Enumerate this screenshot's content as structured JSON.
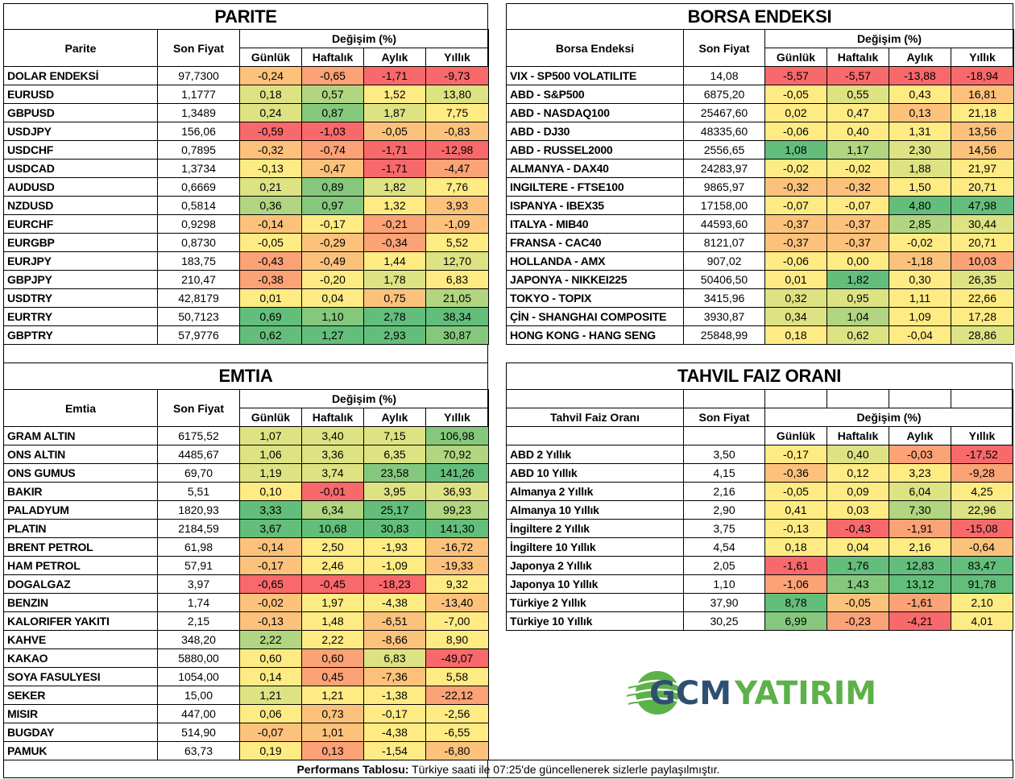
{
  "colors": {
    "red": "#f8696b",
    "orange": "#fba276",
    "light_orange": "#fcc27c",
    "yellow": "#ffeb84",
    "yellow_green": "#dde283",
    "light_green": "#b1d580",
    "green": "#85c87d",
    "dark_green": "#63be7b",
    "logo_blue": "#2d5070",
    "logo_green": "#5db14a"
  },
  "headers": {
    "son_fiyat": "Son Fiyat",
    "degisim": "Değişim (%)",
    "gunluk": "Günlük",
    "haftalik": "Haftalık",
    "aylik": "Aylık",
    "yillik": "Yıllık"
  },
  "parite": {
    "title": "PARITE",
    "name_header": "Parite",
    "rows": [
      {
        "name": "DOLAR ENDEKSİ",
        "price": "97,7300",
        "g": "-0,24",
        "h": "-0,65",
        "a": "-1,71",
        "y": "-9,73",
        "cg": "light_orange",
        "ch": "orange",
        "ca": "red",
        "cy": "red"
      },
      {
        "name": "EURUSD",
        "price": "1,1777",
        "g": "0,18",
        "h": "0,57",
        "a": "1,52",
        "y": "13,80",
        "cg": "yellow_green",
        "ch": "light_green",
        "ca": "yellow",
        "cy": "yellow_green"
      },
      {
        "name": "GBPUSD",
        "price": "1,3489",
        "g": "0,24",
        "h": "0,87",
        "a": "1,87",
        "y": "7,75",
        "cg": "yellow_green",
        "ch": "green",
        "ca": "yellow_green",
        "cy": "yellow"
      },
      {
        "name": "USDJPY",
        "price": "156,06",
        "g": "-0,59",
        "h": "-1,03",
        "a": "-0,05",
        "y": "-0,83",
        "cg": "red",
        "ch": "red",
        "ca": "light_orange",
        "cy": "light_orange"
      },
      {
        "name": "USDCHF",
        "price": "0,7895",
        "g": "-0,32",
        "h": "-0,74",
        "a": "-1,71",
        "y": "-12,98",
        "cg": "light_orange",
        "ch": "orange",
        "ca": "red",
        "cy": "red"
      },
      {
        "name": "USDCAD",
        "price": "1,3734",
        "g": "-0,13",
        "h": "-0,47",
        "a": "-1,71",
        "y": "-4,47",
        "cg": "yellow",
        "ch": "light_orange",
        "ca": "red",
        "cy": "orange"
      },
      {
        "name": "AUDUSD",
        "price": "0,6669",
        "g": "0,21",
        "h": "0,89",
        "a": "1,82",
        "y": "7,76",
        "cg": "yellow_green",
        "ch": "green",
        "ca": "yellow_green",
        "cy": "yellow"
      },
      {
        "name": "NZDUSD",
        "price": "0,5814",
        "g": "0,36",
        "h": "0,97",
        "a": "1,32",
        "y": "3,93",
        "cg": "light_green",
        "ch": "green",
        "ca": "yellow",
        "cy": "light_orange"
      },
      {
        "name": "EURCHF",
        "price": "0,9298",
        "g": "-0,14",
        "h": "-0,17",
        "a": "-0,21",
        "y": "-1,09",
        "cg": "light_orange",
        "ch": "yellow",
        "ca": "orange",
        "cy": "light_orange"
      },
      {
        "name": "EURGBP",
        "price": "0,8730",
        "g": "-0,05",
        "h": "-0,29",
        "a": "-0,34",
        "y": "5,52",
        "cg": "yellow",
        "ch": "light_orange",
        "ca": "orange",
        "cy": "yellow"
      },
      {
        "name": "EURJPY",
        "price": "183,75",
        "g": "-0,43",
        "h": "-0,49",
        "a": "1,44",
        "y": "12,70",
        "cg": "orange",
        "ch": "light_orange",
        "ca": "yellow",
        "cy": "yellow_green"
      },
      {
        "name": "GBPJPY",
        "price": "210,47",
        "g": "-0,38",
        "h": "-0,20",
        "a": "1,78",
        "y": "6,83",
        "cg": "orange",
        "ch": "yellow",
        "ca": "yellow_green",
        "cy": "yellow"
      },
      {
        "name": "USDTRY",
        "price": "42,8179",
        "g": "0,01",
        "h": "0,04",
        "a": "0,75",
        "y": "21,05",
        "cg": "yellow",
        "ch": "yellow",
        "ca": "light_orange",
        "cy": "light_green"
      },
      {
        "name": "EURTRY",
        "price": "50,7123",
        "g": "0,69",
        "h": "1,10",
        "a": "2,78",
        "y": "38,34",
        "cg": "dark_green",
        "ch": "green",
        "ca": "dark_green",
        "cy": "dark_green"
      },
      {
        "name": "GBPTRY",
        "price": "57,9776",
        "g": "0,62",
        "h": "1,27",
        "a": "2,93",
        "y": "30,87",
        "cg": "dark_green",
        "ch": "dark_green",
        "ca": "dark_green",
        "cy": "green"
      }
    ]
  },
  "borsa": {
    "title": "BORSA ENDEKSI",
    "name_header": "Borsa Endeksi",
    "rows": [
      {
        "name": "VIX  - SP500 VOLATILITE",
        "price": "14,08",
        "g": "-5,57",
        "h": "-5,57",
        "a": "-13,88",
        "y": "-18,94",
        "cg": "red",
        "ch": "red",
        "ca": "red",
        "cy": "red"
      },
      {
        "name": "ABD - S&P500",
        "price": "6875,20",
        "g": "-0,05",
        "h": "0,55",
        "a": "0,43",
        "y": "16,81",
        "cg": "yellow",
        "ch": "yellow_green",
        "ca": "yellow",
        "cy": "light_orange"
      },
      {
        "name": "ABD - NASDAQ100",
        "price": "25467,60",
        "g": "0,02",
        "h": "0,47",
        "a": "0,13",
        "y": "21,18",
        "cg": "yellow",
        "ch": "yellow",
        "ca": "light_orange",
        "cy": "yellow"
      },
      {
        "name": "ABD - DJ30",
        "price": "48335,60",
        "g": "-0,06",
        "h": "0,40",
        "a": "1,31",
        "y": "13,56",
        "cg": "yellow",
        "ch": "yellow",
        "ca": "yellow",
        "cy": "light_orange"
      },
      {
        "name": "ABD - RUSSEL2000",
        "price": "2556,65",
        "g": "1,08",
        "h": "1,17",
        "a": "2,30",
        "y": "14,56",
        "cg": "dark_green",
        "ch": "light_green",
        "ca": "yellow_green",
        "cy": "light_orange"
      },
      {
        "name": "ALMANYA - DAX40",
        "price": "24283,97",
        "g": "-0,02",
        "h": "-0,02",
        "a": "1,88",
        "y": "21,97",
        "cg": "yellow",
        "ch": "yellow",
        "ca": "yellow_green",
        "cy": "yellow"
      },
      {
        "name": "INGILTERE - FTSE100",
        "price": "9865,97",
        "g": "-0,32",
        "h": "-0,32",
        "a": "1,50",
        "y": "20,71",
        "cg": "light_orange",
        "ch": "light_orange",
        "ca": "yellow",
        "cy": "yellow"
      },
      {
        "name": "ISPANYA - IBEX35",
        "price": "17158,00",
        "g": "-0,07",
        "h": "-0,07",
        "a": "4,80",
        "y": "47,98",
        "cg": "yellow",
        "ch": "yellow",
        "ca": "dark_green",
        "cy": "dark_green"
      },
      {
        "name": "ITALYA - MIB40",
        "price": "44593,60",
        "g": "-0,37",
        "h": "-0,37",
        "a": "2,85",
        "y": "30,44",
        "cg": "light_orange",
        "ch": "light_orange",
        "ca": "light_green",
        "cy": "yellow_green"
      },
      {
        "name": "FRANSA - CAC40",
        "price": "8121,07",
        "g": "-0,37",
        "h": "-0,37",
        "a": "-0,02",
        "y": "20,71",
        "cg": "light_orange",
        "ch": "light_orange",
        "ca": "yellow",
        "cy": "yellow"
      },
      {
        "name": "HOLLANDA - AMX",
        "price": "907,02",
        "g": "-0,06",
        "h": "0,00",
        "a": "-1,18",
        "y": "10,03",
        "cg": "yellow",
        "ch": "yellow",
        "ca": "light_orange",
        "cy": "orange"
      },
      {
        "name": "JAPONYA - NIKKEI225",
        "price": "50406,50",
        "g": "0,01",
        "h": "1,82",
        "a": "0,30",
        "y": "26,35",
        "cg": "yellow",
        "ch": "dark_green",
        "ca": "yellow",
        "cy": "yellow_green"
      },
      {
        "name": "TOKYO - TOPIX",
        "price": "3415,96",
        "g": "0,32",
        "h": "0,95",
        "a": "1,11",
        "y": "22,66",
        "cg": "yellow_green",
        "ch": "yellow_green",
        "ca": "yellow",
        "cy": "yellow"
      },
      {
        "name": "ÇİN - SHANGHAI COMPOSITE",
        "price": "3930,87",
        "g": "0,34",
        "h": "1,04",
        "a": "1,09",
        "y": "17,28",
        "cg": "yellow_green",
        "ch": "light_green",
        "ca": "yellow",
        "cy": "yellow"
      },
      {
        "name": "HONG KONG - HANG SENG",
        "price": "25848,99",
        "g": "0,18",
        "h": "0,62",
        "a": "-0,04",
        "y": "28,86",
        "cg": "yellow",
        "ch": "yellow_green",
        "ca": "yellow",
        "cy": "yellow_green"
      }
    ]
  },
  "emtia": {
    "title": "EMTIA",
    "name_header": "Emtia",
    "rows": [
      {
        "name": "GRAM ALTIN",
        "price": "6175,52",
        "g": "1,07",
        "h": "3,40",
        "a": "7,15",
        "y": "106,98",
        "cg": "yellow_green",
        "ch": "yellow_green",
        "ca": "yellow_green",
        "cy": "green"
      },
      {
        "name": "ONS ALTIN",
        "price": "4485,67",
        "g": "1,06",
        "h": "3,36",
        "a": "6,35",
        "y": "70,92",
        "cg": "yellow_green",
        "ch": "yellow_green",
        "ca": "yellow_green",
        "cy": "light_green"
      },
      {
        "name": "ONS GUMUS",
        "price": "69,70",
        "g": "1,19",
        "h": "3,74",
        "a": "23,58",
        "y": "141,26",
        "cg": "yellow_green",
        "ch": "yellow_green",
        "ca": "green",
        "cy": "dark_green"
      },
      {
        "name": "BAKIR",
        "price": "5,51",
        "g": "0,10",
        "h": "-0,01",
        "a": "3,95",
        "y": "36,93",
        "cg": "yellow",
        "ch": "red",
        "ca": "yellow_green",
        "cy": "yellow_green"
      },
      {
        "name": "PALADYUM",
        "price": "1820,93",
        "g": "3,33",
        "h": "6,34",
        "a": "25,17",
        "y": "99,23",
        "cg": "dark_green",
        "ch": "light_green",
        "ca": "dark_green",
        "cy": "light_green"
      },
      {
        "name": "PLATIN",
        "price": "2184,59",
        "g": "3,67",
        "h": "10,68",
        "a": "30,83",
        "y": "141,30",
        "cg": "dark_green",
        "ch": "dark_green",
        "ca": "dark_green",
        "cy": "dark_green"
      },
      {
        "name": "BRENT PETROL",
        "price": "61,98",
        "g": "-0,14",
        "h": "2,50",
        "a": "-1,93",
        "y": "-16,72",
        "cg": "light_orange",
        "ch": "yellow",
        "ca": "yellow",
        "cy": "light_orange"
      },
      {
        "name": "HAM PETROL",
        "price": "57,91",
        "g": "-0,17",
        "h": "2,46",
        "a": "-1,09",
        "y": "-19,33",
        "cg": "light_orange",
        "ch": "yellow",
        "ca": "yellow",
        "cy": "light_orange"
      },
      {
        "name": "DOGALGAZ",
        "price": "3,97",
        "g": "-0,65",
        "h": "-0,45",
        "a": "-18,23",
        "y": "9,32",
        "cg": "red",
        "ch": "red",
        "ca": "red",
        "cy": "yellow"
      },
      {
        "name": "BENZIN",
        "price": "1,74",
        "g": "-0,02",
        "h": "1,97",
        "a": "-4,38",
        "y": "-13,40",
        "cg": "light_orange",
        "ch": "yellow",
        "ca": "yellow",
        "cy": "light_orange"
      },
      {
        "name": "KALORIFER YAKITI",
        "price": "2,15",
        "g": "-0,13",
        "h": "1,48",
        "a": "-6,51",
        "y": "-7,00",
        "cg": "light_orange",
        "ch": "yellow",
        "ca": "light_orange",
        "cy": "yellow"
      },
      {
        "name": "KAHVE",
        "price": "348,20",
        "g": "2,22",
        "h": "2,22",
        "a": "-8,66",
        "y": "8,90",
        "cg": "light_green",
        "ch": "yellow",
        "ca": "light_orange",
        "cy": "yellow"
      },
      {
        "name": "KAKAO",
        "price": "5880,00",
        "g": "0,60",
        "h": "0,60",
        "a": "6,83",
        "y": "-49,07",
        "cg": "yellow",
        "ch": "orange",
        "ca": "yellow_green",
        "cy": "red"
      },
      {
        "name": "SOYA FASULYESI",
        "price": "1054,00",
        "g": "0,14",
        "h": "0,45",
        "a": "-7,36",
        "y": "5,58",
        "cg": "yellow",
        "ch": "orange",
        "ca": "light_orange",
        "cy": "yellow"
      },
      {
        "name": "SEKER",
        "price": "15,00",
        "g": "1,21",
        "h": "1,21",
        "a": "-1,38",
        "y": "-22,12",
        "cg": "yellow_green",
        "ch": "yellow",
        "ca": "yellow",
        "cy": "orange"
      },
      {
        "name": "MISIR",
        "price": "447,00",
        "g": "0,06",
        "h": "0,73",
        "a": "-0,17",
        "y": "-2,56",
        "cg": "yellow",
        "ch": "light_orange",
        "ca": "yellow",
        "cy": "yellow"
      },
      {
        "name": "BUGDAY",
        "price": "514,90",
        "g": "-0,07",
        "h": "1,01",
        "a": "-4,38",
        "y": "-6,55",
        "cg": "light_orange",
        "ch": "light_orange",
        "ca": "yellow",
        "cy": "yellow"
      },
      {
        "name": "PAMUK",
        "price": "63,73",
        "g": "0,19",
        "h": "0,13",
        "a": "-1,54",
        "y": "-6,80",
        "cg": "yellow",
        "ch": "orange",
        "ca": "yellow",
        "cy": "light_orange"
      }
    ]
  },
  "tahvil": {
    "title": "TAHVIL FAIZ ORANI",
    "name_header": "Tahvil Faiz Oranı",
    "rows": [
      {
        "name": "ABD 2 Yıllık",
        "price": "3,50",
        "g": "-0,17",
        "h": "0,40",
        "a": "-0,03",
        "y": "-17,52",
        "cg": "yellow",
        "ch": "yellow_green",
        "ca": "orange",
        "cy": "red"
      },
      {
        "name": "ABD 10 Yıllık",
        "price": "4,15",
        "g": "-0,36",
        "h": "0,12",
        "a": "3,23",
        "y": "-9,28",
        "cg": "light_orange",
        "ch": "yellow",
        "ca": "yellow",
        "cy": "orange"
      },
      {
        "name": "Almanya 2 Yıllık",
        "price": "2,16",
        "g": "-0,05",
        "h": "0,09",
        "a": "6,04",
        "y": "4,25",
        "cg": "yellow",
        "ch": "yellow",
        "ca": "yellow_green",
        "cy": "yellow"
      },
      {
        "name": "Almanya 10 Yıllık",
        "price": "2,90",
        "g": "0,41",
        "h": "0,03",
        "a": "7,30",
        "y": "22,96",
        "cg": "yellow",
        "ch": "yellow",
        "ca": "light_green",
        "cy": "yellow_green"
      },
      {
        "name": "İngiltere 2 Yıllık",
        "price": "3,75",
        "g": "-0,13",
        "h": "-0,43",
        "a": "-1,91",
        "y": "-15,08",
        "cg": "yellow",
        "ch": "red",
        "ca": "orange",
        "cy": "red"
      },
      {
        "name": "İngiltere 10 Yıllık",
        "price": "4,54",
        "g": "0,18",
        "h": "0,04",
        "a": "2,16",
        "y": "-0,64",
        "cg": "yellow",
        "ch": "yellow",
        "ca": "yellow",
        "cy": "light_orange"
      },
      {
        "name": "Japonya 2 Yıllık",
        "price": "2,05",
        "g": "-1,61",
        "h": "1,76",
        "a": "12,83",
        "y": "83,47",
        "cg": "red",
        "ch": "dark_green",
        "ca": "dark_green",
        "cy": "dark_green"
      },
      {
        "name": "Japonya 10 Yıllık",
        "price": "1,10",
        "g": "-1,06",
        "h": "1,43",
        "a": "13,12",
        "y": "91,78",
        "cg": "orange",
        "ch": "green",
        "ca": "dark_green",
        "cy": "dark_green"
      },
      {
        "name": "Türkiye 2 Yıllık",
        "price": "37,90",
        "g": "8,78",
        "h": "-0,05",
        "a": "-1,61",
        "y": "2,10",
        "cg": "dark_green",
        "ch": "light_orange",
        "ca": "orange",
        "cy": "yellow"
      },
      {
        "name": "Türkiye 10 Yıllık",
        "price": "30,25",
        "g": "6,99",
        "h": "-0,23",
        "a": "-4,21",
        "y": "4,01",
        "cg": "green",
        "ch": "orange",
        "ca": "red",
        "cy": "yellow"
      }
    ]
  },
  "logo": {
    "text_a": "GCM",
    "text_b": "YATIRIM"
  },
  "footer": {
    "label": "Performans Tablosu:",
    "text": " Türkiye saati ile 07:25'de güncellenerek sizlerle paylaşılmıştır."
  }
}
